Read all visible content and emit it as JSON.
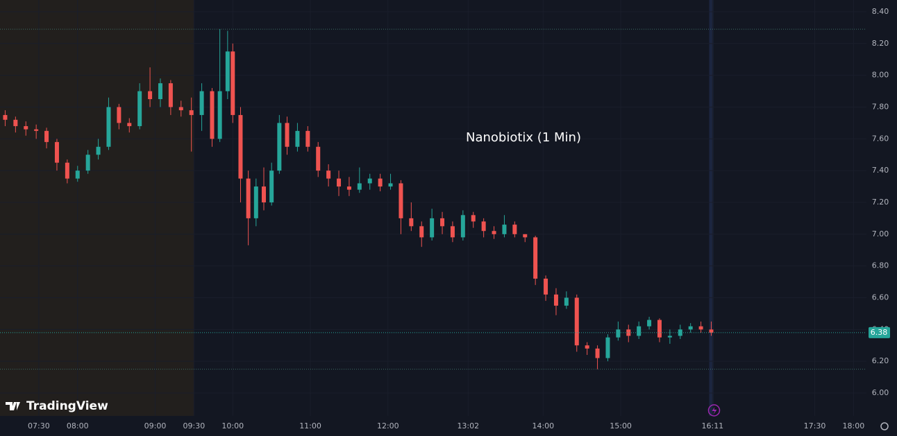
{
  "chart_data": {
    "type": "candlestick",
    "title": "Nanobiotix (1 Min)",
    "watermark": "TradingView",
    "x": [
      424,
      432,
      440,
      448,
      456,
      464,
      472,
      480,
      488,
      496,
      504,
      512,
      520,
      528,
      536,
      544,
      552,
      560,
      568,
      576,
      584,
      590,
      596,
      600,
      606,
      612,
      618,
      624,
      630,
      636,
      642,
      650,
      658,
      666,
      674,
      682,
      690,
      698,
      706,
      714,
      722,
      730,
      738,
      746,
      754,
      762,
      770,
      778,
      786,
      794,
      802,
      810,
      818,
      826,
      834,
      842,
      850,
      858,
      866,
      874,
      882,
      890,
      898,
      906,
      914,
      922,
      930,
      938,
      946,
      954,
      962,
      970
    ],
    "open": [
      7.75,
      7.72,
      7.68,
      7.66,
      7.65,
      7.58,
      7.45,
      7.35,
      7.4,
      7.5,
      7.55,
      7.8,
      7.7,
      7.68,
      7.9,
      7.85,
      7.95,
      7.8,
      7.78,
      7.75,
      7.9,
      7.6,
      7.9,
      8.15,
      7.75,
      7.35,
      7.1,
      7.3,
      7.2,
      7.4,
      7.7,
      7.55,
      7.65,
      7.55,
      7.4,
      7.35,
      7.3,
      7.28,
      7.32,
      7.35,
      7.3,
      7.32,
      7.1,
      7.05,
      6.98,
      7.1,
      7.05,
      6.98,
      7.12,
      7.08,
      7.02,
      7.0,
      7.06,
      7.0,
      6.98,
      6.72,
      6.62,
      6.55,
      6.6,
      6.3,
      6.28,
      6.22,
      6.35,
      6.4,
      6.36,
      6.42,
      6.46,
      6.35,
      6.36,
      6.4,
      6.42,
      6.4
    ],
    "high": [
      7.78,
      7.74,
      7.71,
      7.69,
      7.67,
      7.6,
      7.47,
      7.43,
      7.53,
      7.6,
      7.86,
      7.82,
      7.73,
      7.95,
      8.05,
      7.98,
      7.97,
      7.84,
      7.86,
      7.95,
      7.92,
      8.29,
      8.28,
      8.2,
      7.8,
      7.4,
      7.35,
      7.42,
      7.45,
      7.75,
      7.74,
      7.7,
      7.68,
      7.58,
      7.44,
      7.4,
      7.36,
      7.42,
      7.38,
      7.38,
      7.38,
      7.34,
      7.2,
      7.08,
      7.16,
      7.14,
      7.08,
      7.15,
      7.14,
      7.1,
      7.05,
      7.12,
      7.08,
      7.0,
      6.99,
      6.74,
      6.66,
      6.64,
      6.62,
      6.32,
      6.3,
      6.37,
      6.45,
      6.43,
      6.45,
      6.48,
      6.47,
      6.4,
      6.43,
      6.44,
      6.45,
      6.45
    ],
    "low": [
      7.68,
      7.64,
      7.62,
      7.6,
      7.54,
      7.4,
      7.32,
      7.33,
      7.38,
      7.47,
      7.53,
      7.66,
      7.64,
      7.66,
      7.8,
      7.8,
      7.75,
      7.74,
      7.52,
      7.65,
      7.55,
      7.58,
      7.85,
      7.7,
      7.2,
      6.93,
      7.05,
      7.15,
      7.18,
      7.38,
      7.5,
      7.52,
      7.52,
      7.36,
      7.3,
      7.24,
      7.24,
      7.26,
      7.28,
      7.27,
      7.28,
      7.0,
      7.02,
      6.92,
      6.96,
      7.0,
      6.95,
      6.96,
      7.04,
      6.98,
      6.97,
      6.98,
      6.98,
      6.95,
      6.68,
      6.58,
      6.49,
      6.53,
      6.26,
      6.24,
      6.15,
      6.2,
      6.33,
      6.32,
      6.34,
      6.4,
      6.32,
      6.31,
      6.34,
      6.38,
      6.38,
      6.36
    ],
    "close": [
      7.72,
      7.68,
      7.66,
      7.65,
      7.58,
      7.45,
      7.35,
      7.4,
      7.5,
      7.55,
      7.8,
      7.7,
      7.68,
      7.9,
      7.85,
      7.95,
      7.8,
      7.78,
      7.75,
      7.9,
      7.6,
      7.9,
      8.15,
      7.75,
      7.35,
      7.1,
      7.3,
      7.2,
      7.4,
      7.7,
      7.55,
      7.65,
      7.55,
      7.4,
      7.35,
      7.3,
      7.28,
      7.32,
      7.35,
      7.3,
      7.32,
      7.1,
      7.05,
      6.98,
      7.1,
      7.05,
      6.98,
      7.12,
      7.08,
      7.02,
      7.0,
      7.06,
      7.0,
      6.98,
      6.72,
      6.62,
      6.55,
      6.6,
      6.3,
      6.28,
      6.22,
      6.35,
      6.4,
      6.36,
      6.42,
      6.46,
      6.35,
      6.36,
      6.4,
      6.42,
      6.4,
      6.38
    ],
    "up_color": "#26a69a",
    "down_color": "#ef5350",
    "xlim": [
      420,
      1090
    ],
    "xticks": [
      {
        "value": 450,
        "label": "07:30"
      },
      {
        "value": 480,
        "label": "08:00"
      },
      {
        "value": 540,
        "label": "09:00"
      },
      {
        "value": 570,
        "label": "09:30"
      },
      {
        "value": 600,
        "label": "10:00"
      },
      {
        "value": 660,
        "label": "11:00"
      },
      {
        "value": 720,
        "label": "12:00"
      },
      {
        "value": 782,
        "label": "13:02"
      },
      {
        "value": 840,
        "label": "14:00"
      },
      {
        "value": 900,
        "label": "15:00"
      },
      {
        "value": 971,
        "label": "16:11"
      },
      {
        "value": 1050,
        "label": "17:30"
      },
      {
        "value": 1080,
        "label": "18:00"
      }
    ],
    "ylim": [
      5.856,
      8.474
    ],
    "yticks": [
      {
        "value": 6,
        "label": "6.00"
      },
      {
        "value": 6.2,
        "label": "6.20"
      },
      {
        "value": 6.4,
        "label": "6.40"
      },
      {
        "value": 6.6,
        "label": "6.60"
      },
      {
        "value": 6.8,
        "label": "6.80"
      },
      {
        "value": 7,
        "label": "7.00"
      },
      {
        "value": 7.2,
        "label": "7.20"
      },
      {
        "value": 7.4,
        "label": "7.40"
      },
      {
        "value": 7.6,
        "label": "7.60"
      },
      {
        "value": 7.8,
        "label": "7.80"
      },
      {
        "value": 8,
        "label": "8.00"
      },
      {
        "value": 8.2,
        "label": "8.20"
      },
      {
        "value": 8.4,
        "label": "8.40"
      }
    ],
    "regular_session_start": 570,
    "session_high": 8.29,
    "session_low": 6.15,
    "last_price": 6.38
  }
}
